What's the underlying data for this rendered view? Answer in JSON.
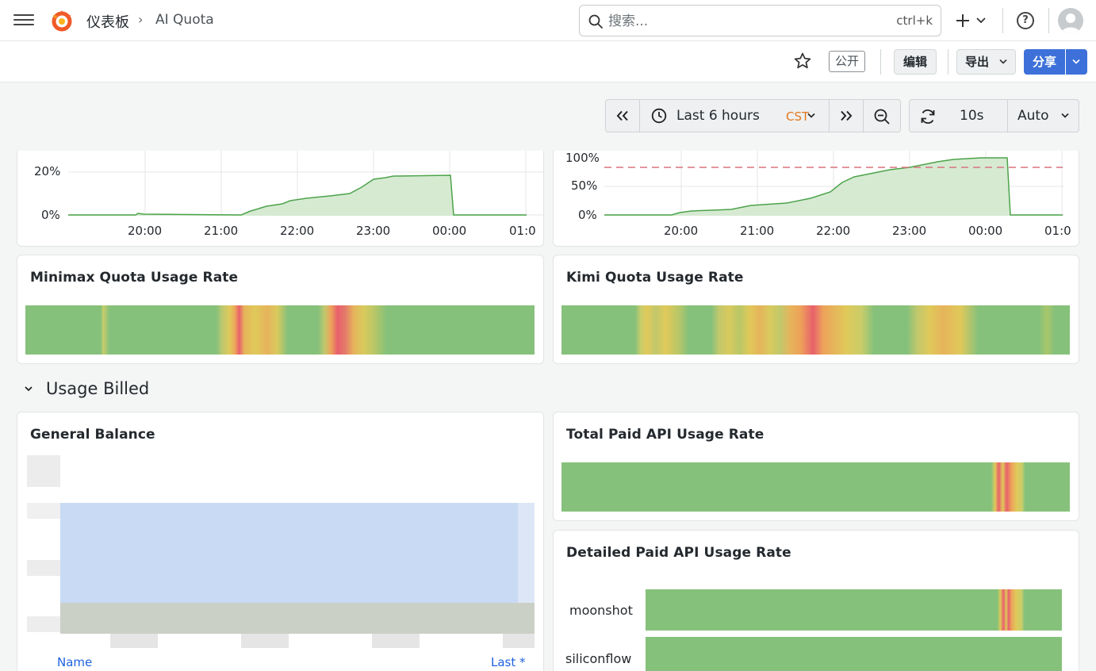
{
  "header": {
    "breadcrumb_root": "仪表板",
    "breadcrumb_sep": "›",
    "breadcrumb_current": "AI Quota",
    "search_placeholder": "搜索...",
    "search_shortcut": "ctrl+k",
    "help_label": "?"
  },
  "toolbar": {
    "public_label": "公开",
    "edit_label": "编辑",
    "export_label": "导出",
    "share_label": "分享"
  },
  "time_controls": {
    "range_label": "Last 6 hours",
    "timezone": "CST",
    "refresh_interval": "10s",
    "auto_label": "Auto"
  },
  "charts": {
    "left_top": {
      "y_ticks": [
        "20%",
        "0%"
      ],
      "x_ticks": [
        "20:00",
        "21:00",
        "22:00",
        "23:00",
        "00:00",
        "01:0"
      ]
    },
    "right_top": {
      "y_ticks": [
        "100%",
        "50%",
        "0%"
      ],
      "x_ticks": [
        "20:00",
        "21:00",
        "22:00",
        "23:00",
        "00:00",
        "01:0"
      ]
    }
  },
  "panels": {
    "minimax": {
      "title": "Minimax Quota Usage Rate"
    },
    "kimi": {
      "title": "Kimi Quota Usage Rate"
    },
    "general_balance": {
      "title": "General Balance",
      "legend_name": "Name",
      "legend_last": "Last *"
    },
    "total_paid": {
      "title": "Total Paid API Usage Rate"
    },
    "detailed_paid": {
      "title": "Detailed Paid API Usage Rate",
      "rows": [
        "moonshot",
        "siliconflow"
      ]
    }
  },
  "row": {
    "title": "Usage Billed"
  },
  "colors": {
    "green": "#86c17b",
    "yellow": "#e0c95a",
    "orange": "#eda35a",
    "red": "#e8616b",
    "line_green": "#4ca34a",
    "area_green": "#d6ead2",
    "threshold": "#d9737f",
    "accent_blue": "#3d71d9"
  }
}
